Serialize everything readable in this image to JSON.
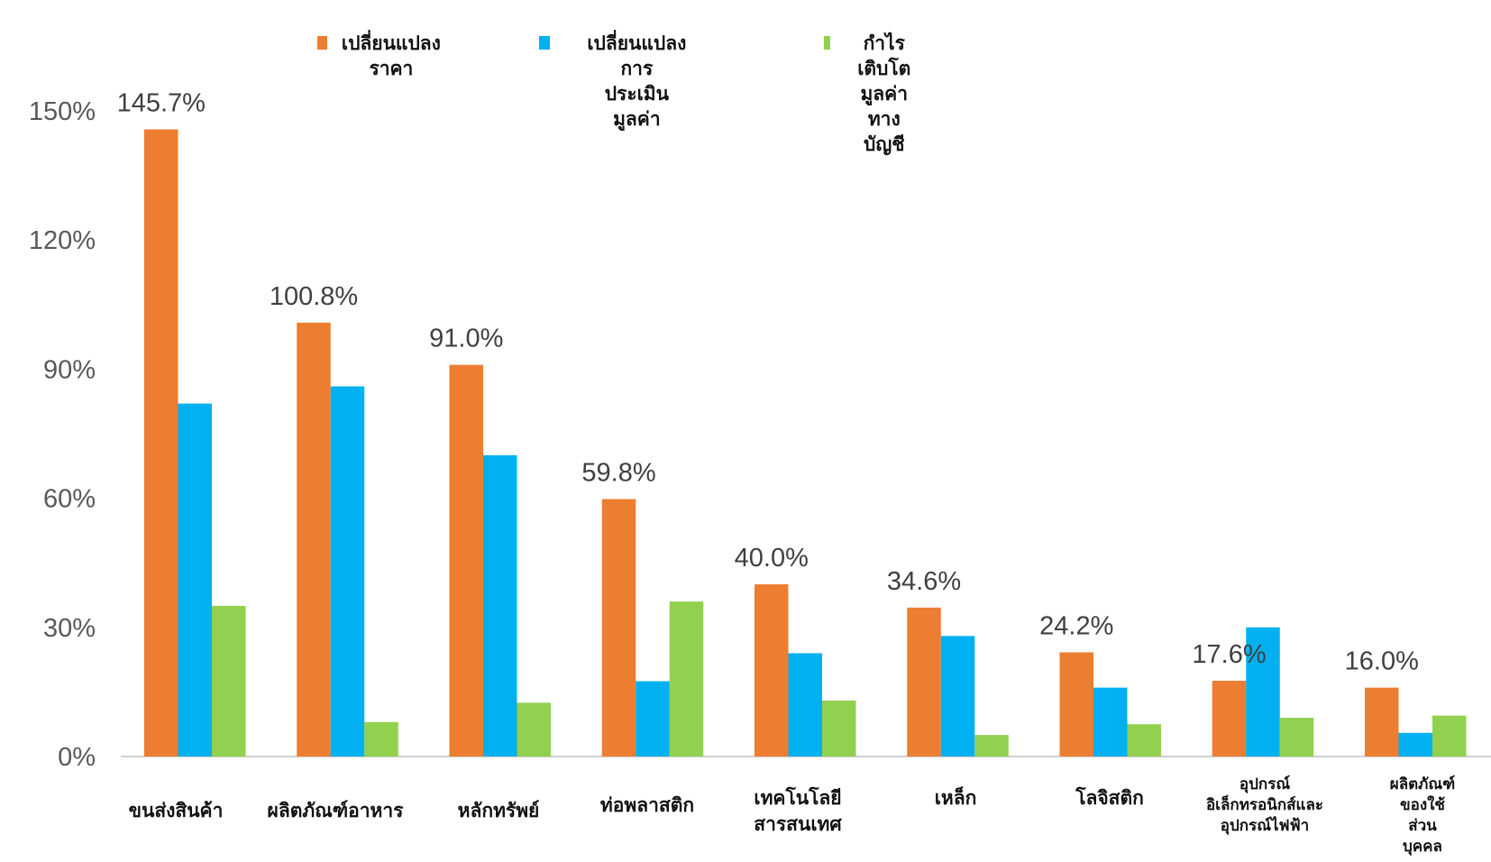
{
  "chart_data": {
    "type": "bar",
    "categories": [
      "ขนส่งสินค้า",
      "ผลิตภัณฑ์อาหาร",
      "หลักทรัพย์",
      "ท่อพลาสติก",
      "เทคโนโลยี\nสารสนเทศ",
      "เหล็ก",
      "โลจิสติก",
      "อุปกรณ์\nอิเล็กทรอนิกส์และ\nอุปกรณ์ไฟฟ้า",
      "ผลิตภัณฑ์\nของใช้ส่วน\nบุคคล"
    ],
    "series": [
      {
        "name": "เปลี่ยนแปลงราคา",
        "color": "#ED7D31",
        "values": [
          145.7,
          100.8,
          91.0,
          59.8,
          40.0,
          34.6,
          24.2,
          17.6,
          16.0
        ]
      },
      {
        "name": "เปลี่ยนแปลงการ\nประเมินมูลค่า",
        "color": "#00B0F0",
        "values": [
          82,
          86,
          70,
          17.5,
          24,
          28,
          16,
          30,
          5.5
        ]
      },
      {
        "name": "กำไรเติบโต\nมูลค่าทางบัญชี",
        "color": "#92D050",
        "values": [
          35,
          8,
          12.5,
          36,
          13,
          5,
          7.5,
          9,
          9.5
        ]
      }
    ],
    "data_labels": [
      "145.7%",
      "100.8%",
      "91.0%",
      "59.8%",
      "40.0%",
      "34.6%",
      "24.2%",
      "17.6%",
      "16.0%"
    ],
    "y_ticks": [
      "0%",
      "30%",
      "60%",
      "90%",
      "120%",
      "150%"
    ],
    "y_tick_values": [
      0,
      30,
      60,
      90,
      120,
      150
    ],
    "ylim": [
      0,
      150
    ],
    "legend_position": "top",
    "grid": false,
    "title": "",
    "xlabel": "",
    "ylabel": ""
  }
}
